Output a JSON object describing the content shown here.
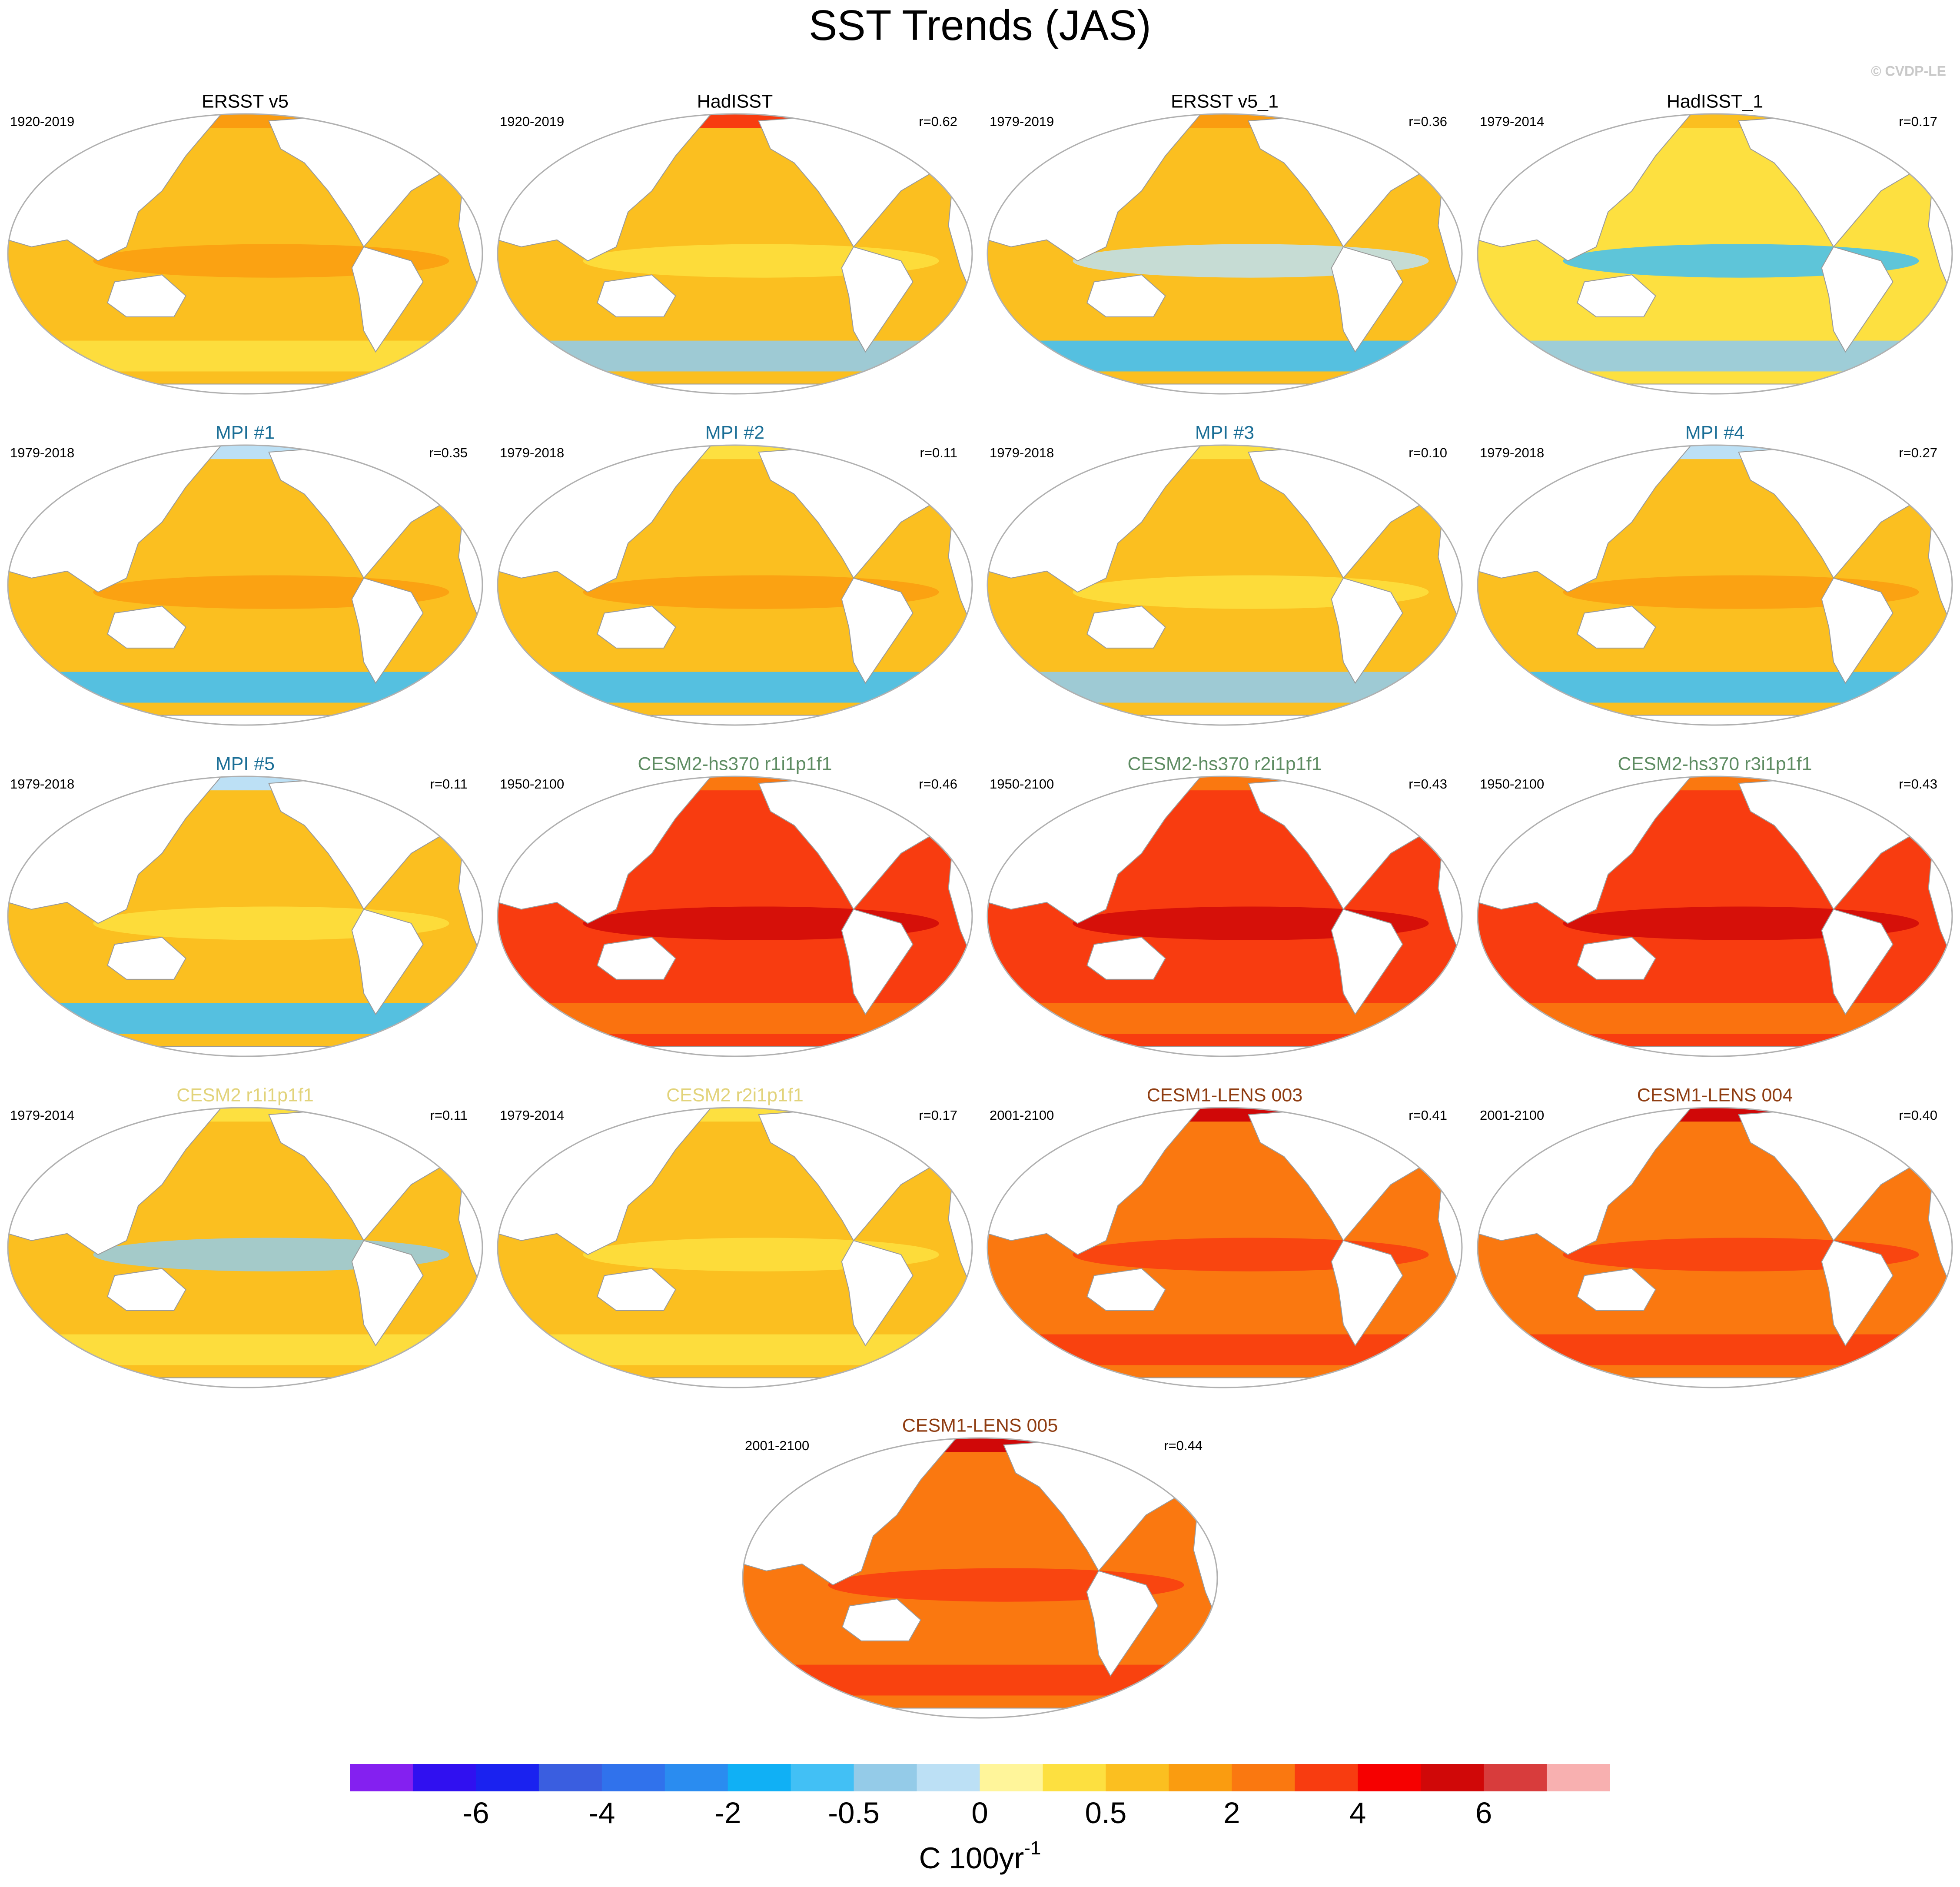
{
  "title": "SST Trends (JAS)",
  "copyright": "© CVDP-LE",
  "panels": [
    {
      "title": "ERSST v5",
      "period": "1920-2019",
      "color": "#000000"
    },
    {
      "title": "HadISST",
      "period": "1920-2019",
      "r": "r=0.62",
      "color": "#000000"
    },
    {
      "title": "ERSST v5_1",
      "period": "1979-2019",
      "r": "r=0.36",
      "color": "#000000"
    },
    {
      "title": "HadISST_1",
      "period": "1979-2014",
      "r": "r=0.17",
      "color": "#000000"
    },
    {
      "title": "MPI #1",
      "period": "1979-2018",
      "r": "r=0.35",
      "color": "#1a6e96"
    },
    {
      "title": "MPI #2",
      "period": "1979-2018",
      "r": "r=0.11",
      "color": "#1a6e96"
    },
    {
      "title": "MPI #3",
      "period": "1979-2018",
      "r": "r=0.10",
      "color": "#1a6e96"
    },
    {
      "title": "MPI #4",
      "period": "1979-2018",
      "r": "r=0.27",
      "color": "#1a6e96"
    },
    {
      "title": "MPI #5",
      "period": "1979-2018",
      "r": "r=0.11",
      "color": "#1a6e96"
    },
    {
      "title": "CESM2-hs370 r1i1p1f1",
      "period": "1950-2100",
      "r": "r=0.46",
      "color": "#5e8c62"
    },
    {
      "title": "CESM2-hs370 r2i1p1f1",
      "period": "1950-2100",
      "r": "r=0.43",
      "color": "#5e8c62"
    },
    {
      "title": "CESM2-hs370 r3i1p1f1",
      "period": "1950-2100",
      "r": "r=0.43",
      "color": "#5e8c62"
    },
    {
      "title": "CESM2 r1i1p1f1",
      "period": "1979-2014",
      "r": "r=0.11",
      "color": "#e2d37a"
    },
    {
      "title": "CESM2 r2i1p1f1",
      "period": "1979-2014",
      "r": "r=0.17",
      "color": "#e2d37a"
    },
    {
      "title": "CESM1-LENS 003",
      "period": "2001-2100",
      "r": "r=0.41",
      "color": "#8f3d12"
    },
    {
      "title": "CESM1-LENS 004",
      "period": "2001-2100",
      "r": "r=0.40",
      "color": "#8f3d12"
    },
    {
      "title": "CESM1-LENS 005",
      "period": "2001-2100",
      "r": "r=0.44",
      "color": "#8f3d12"
    }
  ],
  "colorbar": {
    "colors": [
      "#8420f0",
      "#3010f0",
      "#1a22f0",
      "#3a5ee0",
      "#3072ec",
      "#2a8cf0",
      "#10b0f5",
      "#42c0f5",
      "#94cbe8",
      "#bce0f5",
      "#fff59a",
      "#fde040",
      "#fbbf20",
      "#fa9c10",
      "#fa7810",
      "#f83c10",
      "#f60000",
      "#d00808",
      "#d83c3c",
      "#f8b0b0"
    ],
    "ticks": [
      -6,
      -4,
      -2,
      -0.5,
      0,
      0.5,
      2,
      4,
      6
    ],
    "label": "C 100yr",
    "label_exponent": "-1"
  }
}
